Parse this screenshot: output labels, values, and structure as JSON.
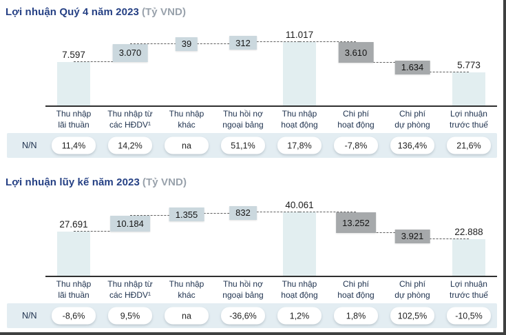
{
  "colors": {
    "title": "#254084",
    "unit": "#98a1ab",
    "bar": "#e2eef0",
    "inc": "#cbd8de",
    "dec": "#a6a9ab",
    "band": "#e3edf2",
    "catText": "#20334f",
    "border": "#3e4040"
  },
  "chart_data": [
    {
      "type": "waterfall",
      "title": "Lợi nhuận Quý 4 năm 2023",
      "unit": "(Tỷ VND)",
      "row_header": "N/N",
      "categories": [
        "Thu nhập\nlãi thuần",
        "Thu nhập từ\ncác HĐDV¹",
        "Thu nhập\nkhác",
        "Thu hồi nợ\nngoại bảng",
        "Thu nhập\nhoạt động",
        "Chi phí\nhoạt động",
        "Chi phí\ndự phòng",
        "Lợi nhuận\ntrước thuế"
      ],
      "segments": [
        {
          "label": "7.597",
          "value": 7597,
          "kind": "total"
        },
        {
          "label": "3.070",
          "value": 3070,
          "kind": "increase"
        },
        {
          "label": "39",
          "value": 39,
          "kind": "increase"
        },
        {
          "label": "312",
          "value": 312,
          "kind": "increase"
        },
        {
          "label": "11.017",
          "value": 11017,
          "kind": "total"
        },
        {
          "label": "3.610",
          "value": 3610,
          "kind": "decrease"
        },
        {
          "label": "1.634",
          "value": 1634,
          "kind": "decrease"
        },
        {
          "label": "5.773",
          "value": 5773,
          "kind": "total"
        }
      ],
      "growth_pct": [
        "11,4%",
        "14,2%",
        "na",
        "51,1%",
        "17,8%",
        "-7,8%",
        "136,4%",
        "21,6%"
      ]
    },
    {
      "type": "waterfall",
      "title": "Lợi nhuận lũy kế năm 2023",
      "unit": "(Tỷ VND)",
      "row_header": "N/N",
      "categories": [
        "Thu nhập\nlãi thuần",
        "Thu nhập từ\ncác HĐDV¹",
        "Thu nhập\nkhác",
        "Thu hồi nợ\nngoại bảng",
        "Thu nhập\nhoạt động",
        "Chi phí\nhoạt động",
        "Chi phí\ndự phòng",
        "Lợi nhuận\ntrước thuế"
      ],
      "segments": [
        {
          "label": "27.691",
          "value": 27691,
          "kind": "total"
        },
        {
          "label": "10.184",
          "value": 10184,
          "kind": "increase"
        },
        {
          "label": "1.355",
          "value": 1355,
          "kind": "increase"
        },
        {
          "label": "832",
          "value": 832,
          "kind": "increase"
        },
        {
          "label": "40.061",
          "value": 40061,
          "kind": "total"
        },
        {
          "label": "13.252",
          "value": 13252,
          "kind": "decrease"
        },
        {
          "label": "3.921",
          "value": 3921,
          "kind": "decrease"
        },
        {
          "label": "22.888",
          "value": 22888,
          "kind": "total"
        }
      ],
      "growth_pct": [
        "-8,6%",
        "9,5%",
        "na",
        "-36,6%",
        "1,2%",
        "1,8%",
        "102,5%",
        "-10,5%"
      ]
    }
  ]
}
